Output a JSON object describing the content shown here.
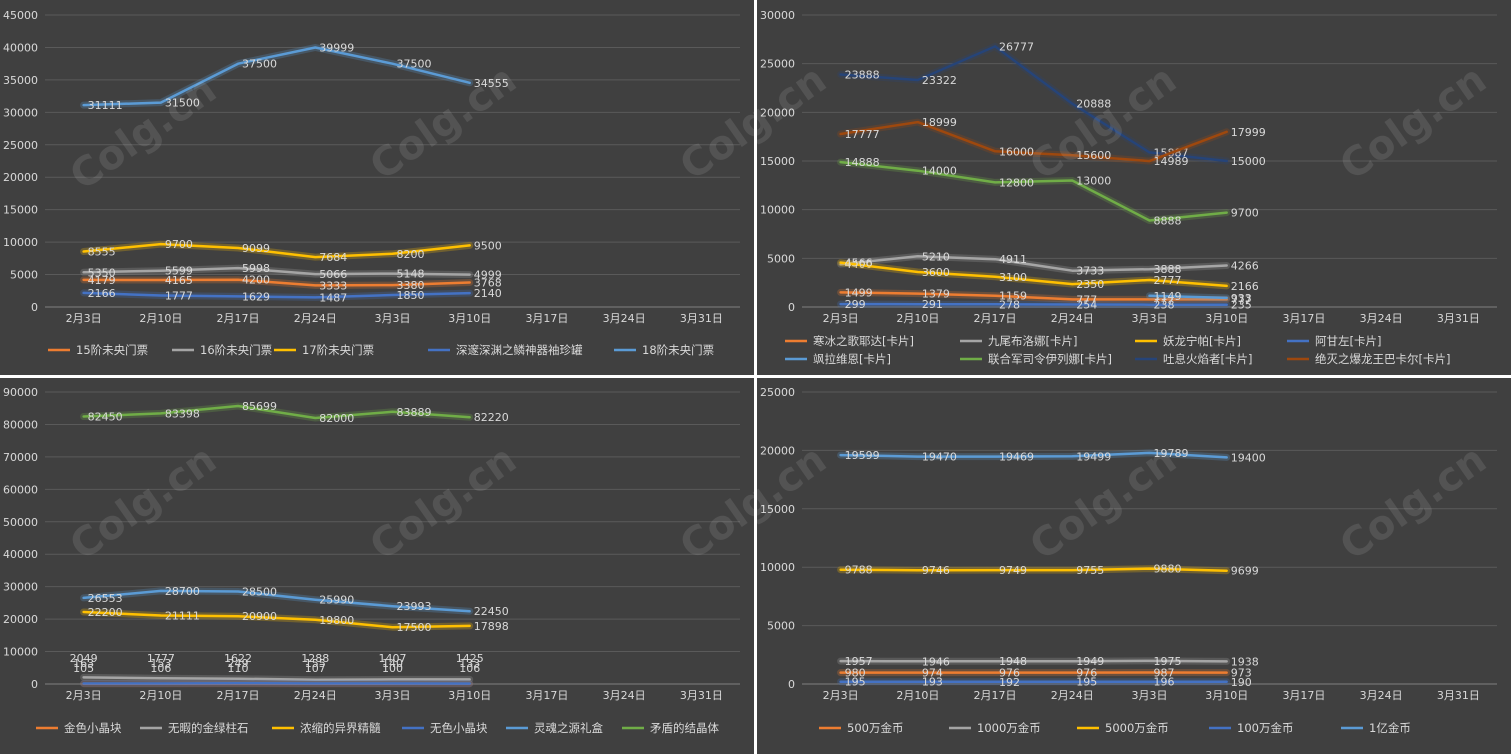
{
  "watermark": "Colg.cn",
  "categories": [
    "2月3日",
    "2月10日",
    "2月17日",
    "2月24日",
    "3月3日",
    "3月10日",
    "3月17日",
    "3月24日",
    "3月31日"
  ],
  "chart_data": [
    {
      "type": "line",
      "yticks": [
        0,
        5000,
        10000,
        15000,
        20000,
        25000,
        30000,
        35000,
        40000,
        45000
      ],
      "ylim": [
        0,
        45000
      ],
      "grid": true,
      "legend_position": "bottom",
      "series": [
        {
          "name": "15阶未央门票",
          "color": "#ed7d31",
          "values": [
            4179,
            4165,
            4200,
            3333,
            3380,
            3768,
            null,
            null,
            null
          ]
        },
        {
          "name": "16阶未央门票",
          "color": "#a5a5a5",
          "values": [
            5350,
            5599,
            5998,
            5066,
            5148,
            4999,
            null,
            null,
            null
          ]
        },
        {
          "name": "17阶未央门票",
          "color": "#ffc000",
          "values": [
            8555,
            9700,
            9099,
            7684,
            8200,
            9500,
            null,
            null,
            null
          ]
        },
        {
          "name": "深邃深渊之鳞神器袖珍罐",
          "color": "#4472c4",
          "values": [
            2166,
            1777,
            1629,
            1487,
            1850,
            2140,
            null,
            null,
            null
          ]
        },
        {
          "name": "18阶未央门票",
          "color": "#5b9bd5",
          "values": [
            31111,
            31500,
            37500,
            39999,
            37500,
            34555,
            null,
            null,
            null
          ]
        }
      ]
    },
    {
      "type": "line",
      "yticks": [
        0,
        5000,
        10000,
        15000,
        20000,
        25000,
        30000
      ],
      "ylim": [
        0,
        30000
      ],
      "grid": true,
      "legend_position": "bottom",
      "series": [
        {
          "name": "寒冰之歌耶达[卡片]",
          "color": "#ed7d31",
          "values": [
            1499,
            1379,
            1159,
            777,
            777,
            777,
            null,
            null,
            null
          ]
        },
        {
          "name": "九尾布洛娜[卡片]",
          "color": "#a5a5a5",
          "values": [
            4400,
            5210,
            4911,
            3733,
            3888,
            4266,
            null,
            null,
            null
          ]
        },
        {
          "name": "妖龙宁帕[卡片]",
          "color": "#ffc000",
          "values": [
            4566,
            3600,
            3100,
            2350,
            2777,
            2166,
            null,
            null,
            null
          ]
        },
        {
          "name": "阿甘左[卡片]",
          "color": "#4472c4",
          "values": [
            299,
            291,
            278,
            254,
            238,
            235,
            null,
            null,
            null
          ]
        },
        {
          "name": "飒拉维恩[卡片]",
          "color": "#5b9bd5",
          "values": [
            null,
            null,
            null,
            null,
            1149,
            933,
            null,
            null,
            null
          ]
        },
        {
          "name": "联合军司令伊列娜[卡片]",
          "color": "#70ad47",
          "values": [
            14888,
            14000,
            12800,
            13000,
            8888,
            9700,
            null,
            null,
            null
          ]
        },
        {
          "name": "吐息火焰者[卡片]",
          "color": "#264478",
          "values": [
            23888,
            23322,
            26777,
            20888,
            15887,
            15000,
            null,
            null,
            null
          ]
        },
        {
          "name": "绝灭之爆龙王巴卡尔[卡片]",
          "color": "#9e480e",
          "values": [
            17777,
            18999,
            16000,
            15600,
            14989,
            17999,
            null,
            null,
            null
          ]
        }
      ]
    },
    {
      "type": "line",
      "yticks": [
        0,
        10000,
        20000,
        30000,
        40000,
        50000,
        60000,
        70000,
        80000,
        90000
      ],
      "ylim": [
        0,
        90000
      ],
      "grid": true,
      "legend_position": "bottom",
      "series": [
        {
          "name": "金色小晶块",
          "color": "#ed7d31",
          "values": [
            105,
            106,
            110,
            107,
            100,
            106,
            null,
            null,
            null
          ]
        },
        {
          "name": "无暇的金绿柱石",
          "color": "#a5a5a5",
          "values": [
            2049,
            1777,
            1622,
            1288,
            1407,
            1425,
            null,
            null,
            null
          ]
        },
        {
          "name": "浓缩的异界精髓",
          "color": "#ffc000",
          "values": [
            22200,
            21111,
            20900,
            19800,
            17500,
            17898,
            null,
            null,
            null
          ]
        },
        {
          "name": "无色小晶块",
          "color": "#4472c4",
          "values": [
            163,
            153,
            249,
            155,
            140,
            133,
            null,
            null,
            null
          ]
        },
        {
          "name": "灵魂之源礼盒",
          "color": "#5b9bd5",
          "values": [
            26553,
            28700,
            28500,
            25990,
            23993,
            22450,
            null,
            null,
            null
          ]
        },
        {
          "name": "矛盾的结晶体",
          "color": "#70ad47",
          "values": [
            82450,
            83398,
            85699,
            82000,
            83889,
            82220,
            null,
            null,
            null
          ]
        }
      ],
      "point_labels": [
        [
          "2049",
          "1777",
          "1622",
          "1288",
          "1407",
          "1425"
        ],
        [
          "163",
          "153",
          "249",
          "155",
          "140",
          "133"
        ],
        [
          "105",
          "106",
          "110",
          "107",
          "100",
          "106"
        ]
      ]
    },
    {
      "type": "line",
      "yticks": [
        0,
        5000,
        10000,
        15000,
        20000,
        25000
      ],
      "ylim": [
        0,
        25000
      ],
      "grid": true,
      "legend_position": "bottom",
      "series": [
        {
          "name": "500万金币",
          "color": "#ed7d31",
          "values": [
            980,
            974,
            976,
            976,
            987,
            973,
            null,
            null,
            null
          ]
        },
        {
          "name": "1000万金币",
          "color": "#a5a5a5",
          "values": [
            1957,
            1946,
            1948,
            1949,
            1975,
            1938,
            null,
            null,
            null
          ]
        },
        {
          "name": "5000万金币",
          "color": "#ffc000",
          "values": [
            9788,
            9746,
            9749,
            9755,
            9880,
            9699,
            null,
            null,
            null
          ]
        },
        {
          "name": "100万金币",
          "color": "#4472c4",
          "values": [
            195,
            193,
            192,
            195,
            196,
            190,
            null,
            null,
            null
          ]
        },
        {
          "name": "1亿金币",
          "color": "#5b9bd5",
          "values": [
            19599,
            19470,
            19469,
            19499,
            19789,
            19400,
            null,
            null,
            null
          ]
        }
      ]
    }
  ]
}
